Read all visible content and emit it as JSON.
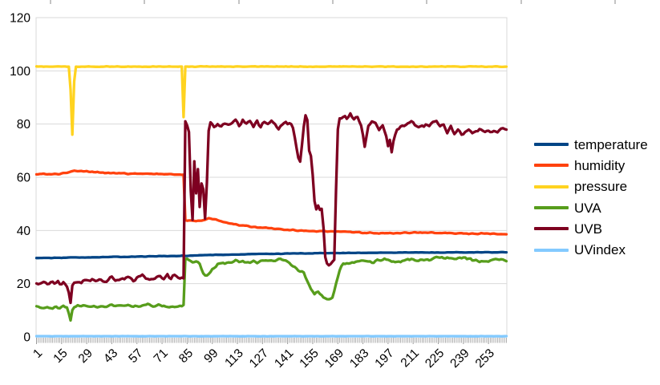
{
  "chart_data": {
    "type": "line",
    "title": "",
    "xlabel": "",
    "ylabel": "",
    "ylim": [
      0,
      120
    ],
    "y_ticks": [
      0,
      20,
      40,
      60,
      80,
      100,
      120
    ],
    "x_ticks": [
      1,
      15,
      29,
      43,
      57,
      71,
      85,
      99,
      113,
      127,
      141,
      155,
      169,
      183,
      197,
      211,
      225,
      239,
      253
    ],
    "n_points": 263,
    "grid": "horizontal",
    "legend_position": "right",
    "series": [
      {
        "name": "temperature",
        "color": "#004586",
        "jitter": 0.08,
        "anchors": [
          [
            1,
            29.6
          ],
          [
            30,
            29.9
          ],
          [
            60,
            30.2
          ],
          [
            84,
            30.5
          ],
          [
            100,
            30.8
          ],
          [
            120,
            31.1
          ],
          [
            150,
            31.4
          ],
          [
            180,
            31.6
          ],
          [
            210,
            31.7
          ],
          [
            263,
            31.8
          ]
        ]
      },
      {
        "name": "humidity",
        "color": "#FF420E",
        "jitter": 0.18,
        "anchors": [
          [
            1,
            61.2
          ],
          [
            14,
            61.2
          ],
          [
            18,
            61.6
          ],
          [
            22,
            62.4
          ],
          [
            30,
            62.1
          ],
          [
            40,
            61.6
          ],
          [
            55,
            61.3
          ],
          [
            70,
            61.2
          ],
          [
            83,
            61.0
          ],
          [
            84,
            43.8
          ],
          [
            88,
            43.6
          ],
          [
            93,
            43.8
          ],
          [
            97,
            44.5
          ],
          [
            100,
            44.2
          ],
          [
            105,
            43.2
          ],
          [
            112,
            42.2
          ],
          [
            120,
            41.5
          ],
          [
            130,
            40.8
          ],
          [
            140,
            40.3
          ],
          [
            150,
            39.9
          ],
          [
            160,
            39.7
          ],
          [
            175,
            39.4
          ],
          [
            185,
            39.1
          ],
          [
            195,
            39.0
          ],
          [
            205,
            39.1
          ],
          [
            215,
            39.3
          ],
          [
            225,
            39.1
          ],
          [
            235,
            38.9
          ],
          [
            250,
            38.8
          ],
          [
            263,
            38.7
          ]
        ]
      },
      {
        "name": "pressure",
        "color": "#FFD320",
        "jitter": 0.1,
        "anchors": [
          [
            1,
            101.6
          ],
          [
            19,
            101.6
          ],
          [
            20,
            93
          ],
          [
            21,
            76
          ],
          [
            22,
            96
          ],
          [
            23,
            101.6
          ],
          [
            82,
            101.6
          ],
          [
            83,
            82.5
          ],
          [
            84,
            101.6
          ],
          [
            263,
            101.6
          ]
        ]
      },
      {
        "name": "UVA",
        "color": "#579D1C",
        "jitter": 0.5,
        "anchors": [
          [
            1,
            11.2
          ],
          [
            8,
            11.1
          ],
          [
            14,
            11.3
          ],
          [
            18,
            11.3
          ],
          [
            19,
            9
          ],
          [
            20,
            6.2
          ],
          [
            21,
            10
          ],
          [
            22,
            11.4
          ],
          [
            28,
            11.6
          ],
          [
            35,
            11.5
          ],
          [
            45,
            11.7
          ],
          [
            55,
            11.6
          ],
          [
            65,
            11.9
          ],
          [
            72,
            11.8
          ],
          [
            78,
            10.8
          ],
          [
            80,
            11.5
          ],
          [
            83,
            12.0
          ],
          [
            84,
            29.3
          ],
          [
            86,
            29.0
          ],
          [
            88,
            28.3
          ],
          [
            90,
            28.8
          ],
          [
            92,
            27.5
          ],
          [
            94,
            24.0
          ],
          [
            95,
            23.2
          ],
          [
            96,
            23.0
          ],
          [
            98,
            24.5
          ],
          [
            100,
            26.0
          ],
          [
            102,
            27.2
          ],
          [
            105,
            27.8
          ],
          [
            110,
            28.2
          ],
          [
            115,
            28.4
          ],
          [
            120,
            28.0
          ],
          [
            125,
            28.4
          ],
          [
            128,
            29.0
          ],
          [
            132,
            28.6
          ],
          [
            136,
            29.2
          ],
          [
            140,
            28.8
          ],
          [
            143,
            27.5
          ],
          [
            146,
            25.5
          ],
          [
            148,
            24.5
          ],
          [
            150,
            24.0
          ],
          [
            152,
            21.0
          ],
          [
            154,
            18.0
          ],
          [
            156,
            16.5
          ],
          [
            158,
            16.8
          ],
          [
            160,
            16.0
          ],
          [
            162,
            14.5
          ],
          [
            163,
            14.0
          ],
          [
            165,
            14.2
          ],
          [
            166,
            15.0
          ],
          [
            168,
            20.0
          ],
          [
            170,
            25.0
          ],
          [
            172,
            27.5
          ],
          [
            175,
            28.0
          ],
          [
            180,
            28.6
          ],
          [
            185,
            28.9
          ],
          [
            188,
            28.0
          ],
          [
            190,
            28.4
          ],
          [
            195,
            29.8
          ],
          [
            198,
            28.6
          ],
          [
            202,
            28.2
          ],
          [
            206,
            28.8
          ],
          [
            210,
            29.2
          ],
          [
            214,
            28.6
          ],
          [
            218,
            29.0
          ],
          [
            222,
            29.6
          ],
          [
            226,
            30.2
          ],
          [
            228,
            29.6
          ],
          [
            232,
            29.2
          ],
          [
            236,
            29.8
          ],
          [
            240,
            30.0
          ],
          [
            244,
            28.8
          ],
          [
            248,
            28.2
          ],
          [
            252,
            28.6
          ],
          [
            256,
            29.2
          ],
          [
            263,
            28.8
          ]
        ]
      },
      {
        "name": "UVB",
        "color": "#7E0021",
        "jitter": 0.9,
        "anchors": [
          [
            1,
            19.6
          ],
          [
            5,
            20.2
          ],
          [
            9,
            19.6
          ],
          [
            13,
            20.4
          ],
          [
            17,
            20.0
          ],
          [
            18,
            19.5
          ],
          [
            19,
            17.0
          ],
          [
            20,
            13.5
          ],
          [
            21,
            19.5
          ],
          [
            22,
            20.5
          ],
          [
            25,
            21.0
          ],
          [
            28,
            21.5
          ],
          [
            32,
            21.2
          ],
          [
            36,
            21.8
          ],
          [
            40,
            21.4
          ],
          [
            44,
            22.0
          ],
          [
            48,
            21.6
          ],
          [
            52,
            22.2
          ],
          [
            56,
            21.8
          ],
          [
            60,
            22.4
          ],
          [
            64,
            22.0
          ],
          [
            68,
            22.6
          ],
          [
            71,
            22.1
          ],
          [
            74,
            23.0
          ],
          [
            76,
            22.2
          ],
          [
            78,
            23.2
          ],
          [
            80,
            22.0
          ],
          [
            82,
            21.8
          ],
          [
            83,
            22.0
          ],
          [
            84,
            81.0
          ],
          [
            85,
            79.5
          ],
          [
            86,
            77.0
          ],
          [
            87,
            55.0
          ],
          [
            88,
            44.0
          ],
          [
            89,
            66.0
          ],
          [
            90,
            54.0
          ],
          [
            91,
            63.5
          ],
          [
            92,
            49.0
          ],
          [
            93,
            57.5
          ],
          [
            94,
            55.5
          ],
          [
            95,
            44.5
          ],
          [
            96,
            58.0
          ],
          [
            97,
            77.5
          ],
          [
            98,
            80.5
          ],
          [
            100,
            79.0
          ],
          [
            102,
            80.5
          ],
          [
            104,
            79.5
          ],
          [
            106,
            80.5
          ],
          [
            108,
            79.0
          ],
          [
            110,
            80.0
          ],
          [
            112,
            81.0
          ],
          [
            114,
            79.5
          ],
          [
            116,
            81.5
          ],
          [
            118,
            80.0
          ],
          [
            120,
            81.0
          ],
          [
            122,
            79.5
          ],
          [
            124,
            80.5
          ],
          [
            126,
            79.0
          ],
          [
            128,
            81.0
          ],
          [
            130,
            80.0
          ],
          [
            132,
            81.5
          ],
          [
            134,
            80.5
          ],
          [
            136,
            77.5
          ],
          [
            138,
            80.0
          ],
          [
            140,
            81.0
          ],
          [
            142,
            80.0
          ],
          [
            144,
            78.5
          ],
          [
            145,
            75.0
          ],
          [
            146,
            71.0
          ],
          [
            147,
            67.5
          ],
          [
            148,
            66.0
          ],
          [
            149,
            72.0
          ],
          [
            150,
            79.0
          ],
          [
            151,
            82.5
          ],
          [
            152,
            81.5
          ],
          [
            153,
            70.0
          ],
          [
            154,
            68.0
          ],
          [
            155,
            61.0
          ],
          [
            156,
            51.0
          ],
          [
            157,
            48.5
          ],
          [
            158,
            49.5
          ],
          [
            159,
            47.5
          ],
          [
            160,
            48.0
          ],
          [
            161,
            41.0
          ],
          [
            162,
            30.0
          ],
          [
            163,
            27.0
          ],
          [
            164,
            26.5
          ],
          [
            165,
            27.0
          ],
          [
            166,
            27.5
          ],
          [
            167,
            29.0
          ],
          [
            168,
            55.0
          ],
          [
            169,
            78.0
          ],
          [
            170,
            82.0
          ],
          [
            172,
            83.0
          ],
          [
            174,
            82.0
          ],
          [
            176,
            83.5
          ],
          [
            178,
            81.5
          ],
          [
            180,
            83.0
          ],
          [
            182,
            79.5
          ],
          [
            183,
            76.0
          ],
          [
            184,
            72.0
          ],
          [
            185,
            75.5
          ],
          [
            186,
            79.5
          ],
          [
            188,
            81.5
          ],
          [
            190,
            80.5
          ],
          [
            192,
            78.0
          ],
          [
            194,
            80.0
          ],
          [
            196,
            75.5
          ],
          [
            197,
            71.0
          ],
          [
            198,
            74.0
          ],
          [
            199,
            70.0
          ],
          [
            200,
            73.5
          ],
          [
            202,
            77.5
          ],
          [
            204,
            79.5
          ],
          [
            206,
            78.5
          ],
          [
            208,
            79.5
          ],
          [
            210,
            80.5
          ],
          [
            212,
            79.5
          ],
          [
            214,
            78.5
          ],
          [
            216,
            79.5
          ],
          [
            218,
            80.5
          ],
          [
            220,
            79.0
          ],
          [
            222,
            80.0
          ],
          [
            224,
            80.5
          ],
          [
            226,
            78.5
          ],
          [
            228,
            79.5
          ],
          [
            230,
            77.5
          ],
          [
            232,
            78.5
          ],
          [
            234,
            76.5
          ],
          [
            236,
            78.0
          ],
          [
            238,
            75.5
          ],
          [
            240,
            77.0
          ],
          [
            242,
            78.0
          ],
          [
            244,
            76.0
          ],
          [
            246,
            77.0
          ],
          [
            248,
            78.0
          ],
          [
            250,
            76.5
          ],
          [
            252,
            77.5
          ],
          [
            254,
            76.5
          ],
          [
            256,
            77.5
          ],
          [
            258,
            76.5
          ],
          [
            260,
            77.5
          ],
          [
            263,
            78.0
          ]
        ]
      },
      {
        "name": "UVindex",
        "color": "#83CAFF",
        "jitter": 0.05,
        "anchors": [
          [
            1,
            0.25
          ],
          [
            263,
            0.25
          ]
        ]
      }
    ]
  },
  "decorations": {
    "top_ticks_x": [
      63,
      180,
      298,
      415,
      532,
      650,
      767
    ]
  }
}
